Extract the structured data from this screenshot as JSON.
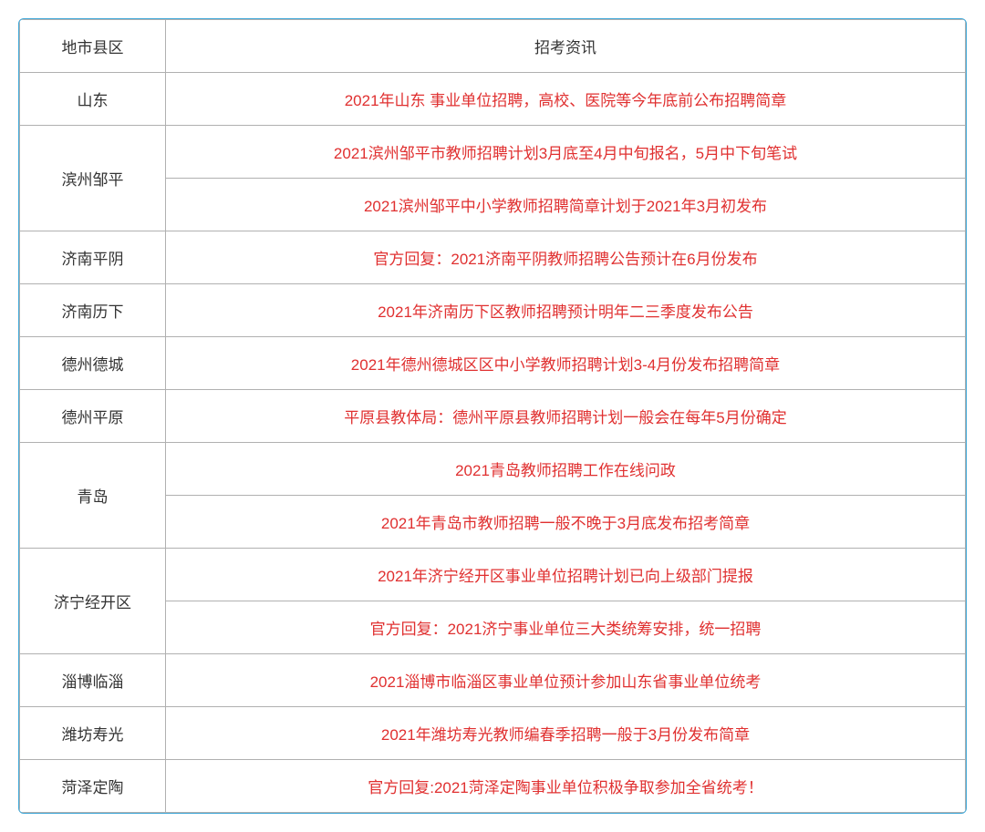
{
  "table": {
    "type": "table",
    "border_color": "#40a8d8",
    "cell_border_color": "#b0b0b0",
    "header_text_color": "#333333",
    "region_text_color": "#333333",
    "info_text_color": "#e03030",
    "background_color": "#ffffff",
    "font_size": 17,
    "columns": {
      "region": "地市县区",
      "info": "招考资讯"
    },
    "rows": [
      {
        "region": "山东",
        "rowspan": 1,
        "items": [
          "2021年山东 事业单位招聘，高校、医院等今年底前公布招聘简章"
        ]
      },
      {
        "region": "滨州邹平",
        "rowspan": 2,
        "items": [
          "2021滨州邹平市教师招聘计划3月底至4月中旬报名，5月中下旬笔试",
          "2021滨州邹平中小学教师招聘简章计划于2021年3月初发布"
        ]
      },
      {
        "region": "济南平阴",
        "rowspan": 1,
        "items": [
          "官方回复：2021济南平阴教师招聘公告预计在6月份发布"
        ]
      },
      {
        "region": "济南历下",
        "rowspan": 1,
        "items": [
          "2021年济南历下区教师招聘预计明年二三季度发布公告"
        ]
      },
      {
        "region": "德州德城",
        "rowspan": 1,
        "items": [
          "2021年德州德城区区中小学教师招聘计划3-4月份发布招聘简章"
        ]
      },
      {
        "region": "德州平原",
        "rowspan": 1,
        "items": [
          "平原县教体局：德州平原县教师招聘计划一般会在每年5月份确定"
        ]
      },
      {
        "region": "青岛",
        "rowspan": 2,
        "items": [
          "2021青岛教师招聘工作在线问政",
          "2021年青岛市教师招聘一般不晚于3月底发布招考简章"
        ]
      },
      {
        "region": "济宁经开区",
        "rowspan": 2,
        "items": [
          "2021年济宁经开区事业单位招聘计划已向上级部门提报",
          "官方回复：2021济宁事业单位三大类统筹安排，统一招聘"
        ]
      },
      {
        "region": "淄博临淄",
        "rowspan": 1,
        "items": [
          "2021淄博市临淄区事业单位预计参加山东省事业单位统考"
        ]
      },
      {
        "region": "潍坊寿光",
        "rowspan": 1,
        "items": [
          "2021年潍坊寿光教师编春季招聘一般于3月份发布简章"
        ]
      },
      {
        "region": "菏泽定陶",
        "rowspan": 1,
        "items": [
          "官方回复:2021菏泽定陶事业单位积极争取参加全省统考！"
        ]
      }
    ]
  }
}
